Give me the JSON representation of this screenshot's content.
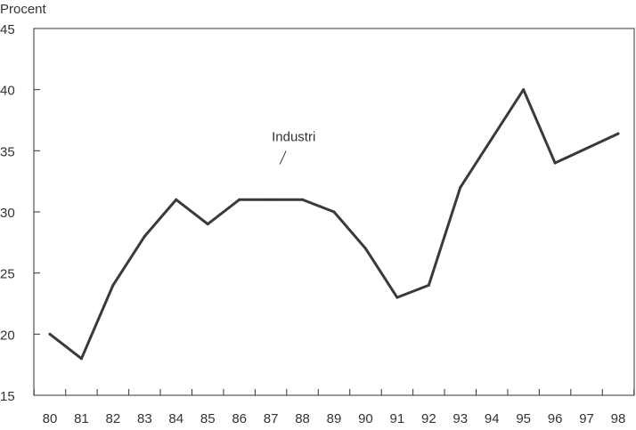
{
  "chart_data": {
    "type": "line",
    "title": "",
    "xlabel": "",
    "ylabel": "Procent",
    "categories": [
      "80",
      "81",
      "82",
      "83",
      "84",
      "85",
      "86",
      "87",
      "88",
      "89",
      "90",
      "91",
      "92",
      "93",
      "94",
      "95",
      "96",
      "97",
      "98"
    ],
    "series": [
      {
        "name": "Industri",
        "values": [
          20,
          18,
          24,
          28,
          31,
          29,
          31,
          31,
          31,
          30,
          27,
          23,
          24,
          32,
          36,
          40,
          34,
          35.2,
          36.4
        ]
      }
    ],
    "ylim": [
      15,
      45
    ],
    "yticks": [
      15,
      20,
      25,
      30,
      35,
      40,
      45
    ],
    "grid": false,
    "legend": "none",
    "annotations": [
      {
        "text": "Industri",
        "x": "87",
        "y": 36
      }
    ],
    "colors": {
      "line": "#3a3a3a",
      "axis": "#333333"
    }
  }
}
